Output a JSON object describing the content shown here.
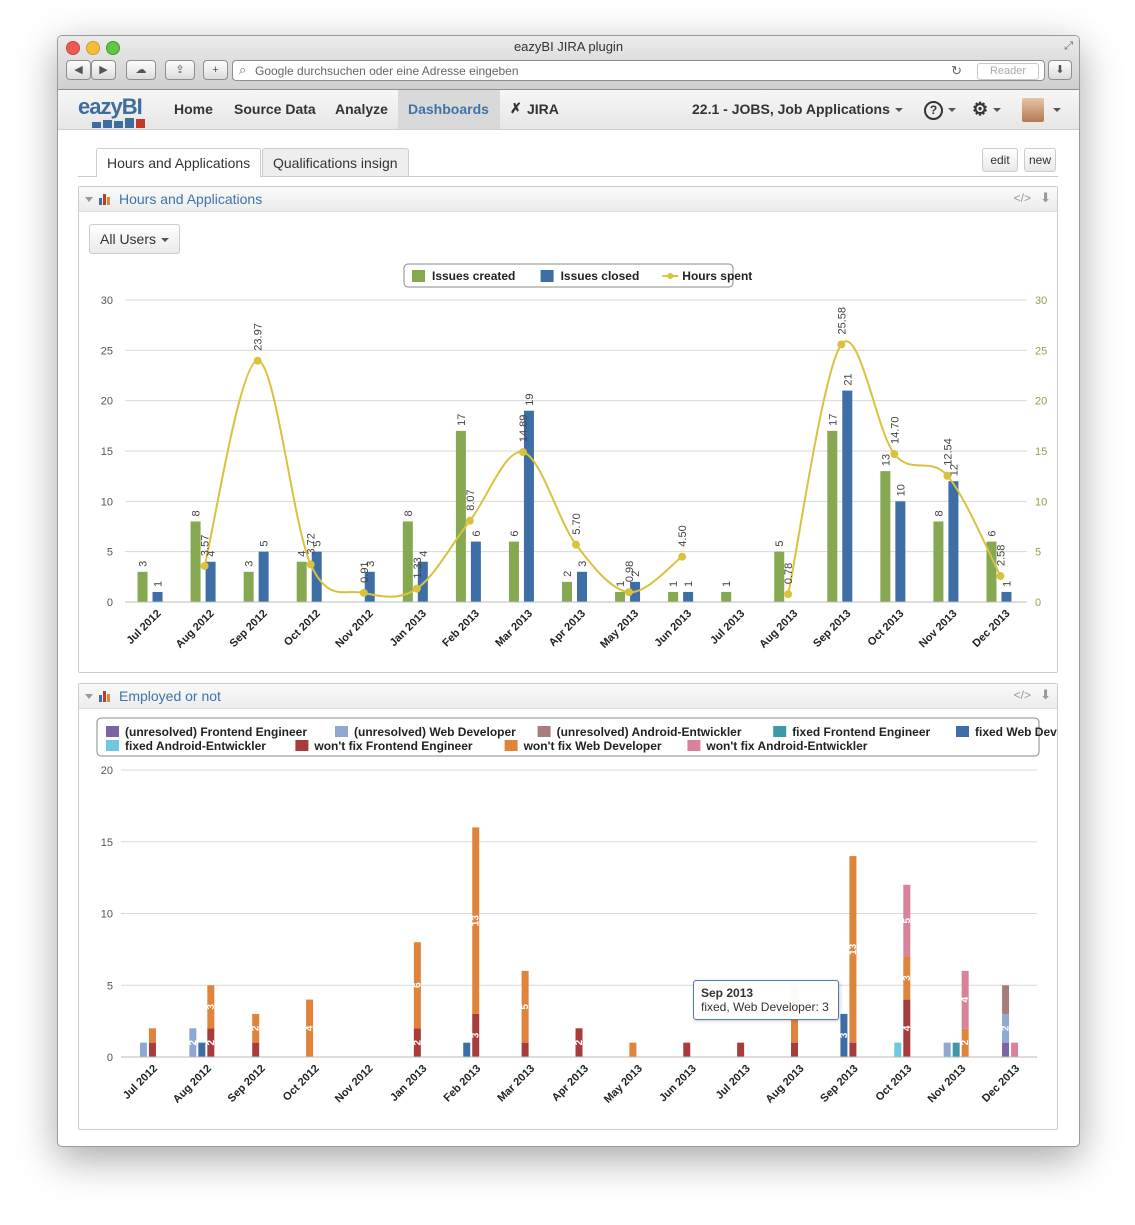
{
  "window": {
    "title": "eazyBI JIRA plugin"
  },
  "browser": {
    "url_placeholder": "Google durchsuchen oder eine Adresse eingeben",
    "reader_label": "Reader"
  },
  "nav": {
    "logo": "eazyBI",
    "items": [
      {
        "label": "Home"
      },
      {
        "label": "Source Data"
      },
      {
        "label": "Analyze"
      },
      {
        "label": "Dashboards"
      },
      {
        "label": "JIRA"
      }
    ],
    "account": "22.1 - JOBS, Job Applications",
    "help_icon": "?",
    "settings_icon": "gear-icon"
  },
  "dashboard": {
    "tabs": [
      {
        "label": "Hours and Applications"
      },
      {
        "label": "Qualifications insign"
      }
    ],
    "edit_label": "edit",
    "new_label": "new"
  },
  "panel1": {
    "title": "Hours and Applications",
    "filter_label": "All Users"
  },
  "panel2": {
    "title": "Employed or not"
  },
  "tooltip": {
    "title": "Sep 2013",
    "text": "fixed, Web Developer: 3"
  },
  "chart_data": [
    {
      "type": "bar",
      "categories": [
        "Jul 2012",
        "Aug 2012",
        "Sep 2012",
        "Oct 2012",
        "Nov 2012",
        "Jan 2013",
        "Feb 2013",
        "Mar 2013",
        "Apr 2013",
        "May 2013",
        "Jun 2013",
        "Jul 2013",
        "Aug 2013",
        "Sep 2013",
        "Oct 2013",
        "Nov 2013",
        "Dec 2013"
      ],
      "series": [
        {
          "name": "Issues created",
          "kind": "bar",
          "color": "#86a851",
          "values": [
            3,
            8,
            3,
            4,
            null,
            8,
            17,
            6,
            2,
            1,
            1,
            1,
            5,
            17,
            13,
            8,
            6
          ],
          "labels": [
            "3",
            "8",
            "3",
            "4",
            "",
            "8",
            "17",
            "6",
            "2",
            "1",
            "1",
            "1",
            "5",
            "17",
            "13",
            "8",
            "6"
          ]
        },
        {
          "name": "Issues closed",
          "kind": "bar",
          "color": "#3e6ea6",
          "values": [
            1,
            4,
            5,
            5,
            3,
            4,
            6,
            19,
            3,
            2,
            1,
            null,
            null,
            21,
            10,
            12,
            1
          ],
          "labels": [
            "1",
            "4",
            "5",
            "5",
            "3",
            "4",
            "6",
            "19",
            "3",
            "2",
            "1",
            "",
            "",
            "21",
            "10",
            "12",
            "1"
          ]
        },
        {
          "name": "Hours spent",
          "kind": "line",
          "color": "#d8c23e",
          "values": [
            null,
            3.57,
            23.97,
            3.72,
            0.91,
            1.33,
            8.07,
            14.89,
            5.7,
            0.98,
            4.5,
            null,
            0.78,
            25.58,
            14.7,
            12.54,
            2.58
          ],
          "labels": [
            "",
            "3.57",
            "23.97",
            "3.72",
            "0.91",
            "1.33",
            "8.07",
            "14.89",
            "5.70",
            "0.98",
            "4.50",
            "",
            "0.78",
            "25.58",
            "14.70",
            "12.54",
            "2.58"
          ]
        }
      ],
      "yticks": [
        "0",
        "5",
        "10",
        "15",
        "20",
        "25",
        "30"
      ],
      "ylim": [
        0,
        30
      ],
      "legend": "top-center"
    },
    {
      "type": "bar",
      "stacked": true,
      "categories": [
        "Jul 2012",
        "Aug 2012",
        "Sep 2012",
        "Oct 2012",
        "Nov 2012",
        "Jan 2013",
        "Feb 2013",
        "Mar 2013",
        "Apr 2013",
        "May 2013",
        "Jun 2013",
        "Jul 2013",
        "Aug 2013",
        "Sep 2013",
        "Oct 2013",
        "Nov 2013",
        "Dec 2013"
      ],
      "series": [
        {
          "name": "(unresolved) Frontend Engineer",
          "color": "#7a64a3"
        },
        {
          "name": "(unresolved) Web Developer",
          "color": "#8fa8cf"
        },
        {
          "name": "(unresolved) Android-Entwickler",
          "color": "#a87c7a"
        },
        {
          "name": "fixed Frontend Engineer",
          "color": "#3f98a8"
        },
        {
          "name": "fixed Web Developer",
          "color": "#3e6ea6"
        },
        {
          "name": "fixed Android-Entwickler",
          "color": "#6ec8e0"
        },
        {
          "name": "won't fix Frontend Engineer",
          "color": "#a83c3c"
        },
        {
          "name": "won't fix Web Developer",
          "color": "#e0843c"
        },
        {
          "name": "won't fix Android-Entwickler",
          "color": "#d9839a"
        }
      ],
      "groups": [
        {
          "bars": [
            {
              "stack": [
                {
                  "s": 1,
                  "v": 1
                }
              ]
            },
            {
              "stack": [
                {
                  "s": 6,
                  "v": 1
                },
                {
                  "s": 7,
                  "v": 1
                }
              ]
            }
          ]
        },
        {
          "bars": [
            {
              "stack": [
                {
                  "s": 1,
                  "v": 2,
                  "label": "2"
                }
              ]
            },
            {
              "stack": [
                {
                  "s": 4,
                  "v": 1
                }
              ]
            },
            {
              "stack": [
                {
                  "s": 6,
                  "v": 2,
                  "label": "2"
                },
                {
                  "s": 7,
                  "v": 3,
                  "label": "3"
                }
              ]
            }
          ]
        },
        {
          "bars": [
            {
              "stack": [
                {
                  "s": 6,
                  "v": 1
                },
                {
                  "s": 7,
                  "v": 2,
                  "label": "2"
                }
              ]
            }
          ]
        },
        {
          "bars": [
            {
              "stack": [
                {
                  "s": 7,
                  "v": 4,
                  "label": "4"
                }
              ]
            }
          ]
        },
        {
          "bars": []
        },
        {
          "bars": [
            {
              "stack": [
                {
                  "s": 6,
                  "v": 2,
                  "label": "2"
                },
                {
                  "s": 7,
                  "v": 6,
                  "label": "6"
                }
              ]
            }
          ]
        },
        {
          "bars": [
            {
              "stack": [
                {
                  "s": 4,
                  "v": 1
                }
              ]
            },
            {
              "stack": [
                {
                  "s": 6,
                  "v": 3,
                  "label": "3"
                },
                {
                  "s": 7,
                  "v": 13,
                  "label": "13"
                }
              ]
            }
          ]
        },
        {
          "bars": [
            {
              "stack": [
                {
                  "s": 6,
                  "v": 1
                },
                {
                  "s": 7,
                  "v": 5,
                  "label": "5"
                }
              ]
            }
          ]
        },
        {
          "bars": [
            {
              "stack": [
                {
                  "s": 6,
                  "v": 2,
                  "label": "2"
                }
              ]
            }
          ]
        },
        {
          "bars": [
            {
              "stack": [
                {
                  "s": 7,
                  "v": 1
                }
              ]
            }
          ]
        },
        {
          "bars": [
            {
              "stack": [
                {
                  "s": 6,
                  "v": 1
                }
              ]
            }
          ]
        },
        {
          "bars": [
            {
              "stack": [
                {
                  "s": 6,
                  "v": 1
                }
              ]
            }
          ]
        },
        {
          "bars": [
            {
              "stack": [
                {
                  "s": 6,
                  "v": 1
                },
                {
                  "s": 7,
                  "v": 4
                }
              ]
            }
          ]
        },
        {
          "bars": [
            {
              "stack": [
                {
                  "s": 4,
                  "v": 3,
                  "label": "3"
                }
              ]
            },
            {
              "stack": [
                {
                  "s": 6,
                  "v": 1
                },
                {
                  "s": 7,
                  "v": 13,
                  "label": "13"
                }
              ]
            }
          ]
        },
        {
          "bars": [
            {
              "stack": [
                {
                  "s": 5,
                  "v": 1
                }
              ]
            },
            {
              "stack": [
                {
                  "s": 6,
                  "v": 4,
                  "label": "4"
                },
                {
                  "s": 7,
                  "v": 3,
                  "label": "3"
                },
                {
                  "s": 8,
                  "v": 5,
                  "label": "5"
                }
              ]
            }
          ]
        },
        {
          "bars": [
            {
              "stack": [
                {
                  "s": 1,
                  "v": 1
                }
              ]
            },
            {
              "stack": [
                {
                  "s": 3,
                  "v": 1
                }
              ]
            },
            {
              "stack": [
                {
                  "s": 7,
                  "v": 2,
                  "label": "2"
                },
                {
                  "s": 8,
                  "v": 4,
                  "label": "4"
                }
              ]
            }
          ]
        },
        {
          "bars": [
            {
              "stack": [
                {
                  "s": 0,
                  "v": 1
                },
                {
                  "s": 1,
                  "v": 2,
                  "label": "2"
                },
                {
                  "s": 2,
                  "v": 2
                }
              ]
            },
            {
              "stack": [
                {
                  "s": 8,
                  "v": 1
                }
              ]
            }
          ]
        }
      ],
      "yticks": [
        "0",
        "5",
        "10",
        "15",
        "20"
      ],
      "ylim": [
        0,
        20
      ],
      "legend": "top"
    }
  ]
}
